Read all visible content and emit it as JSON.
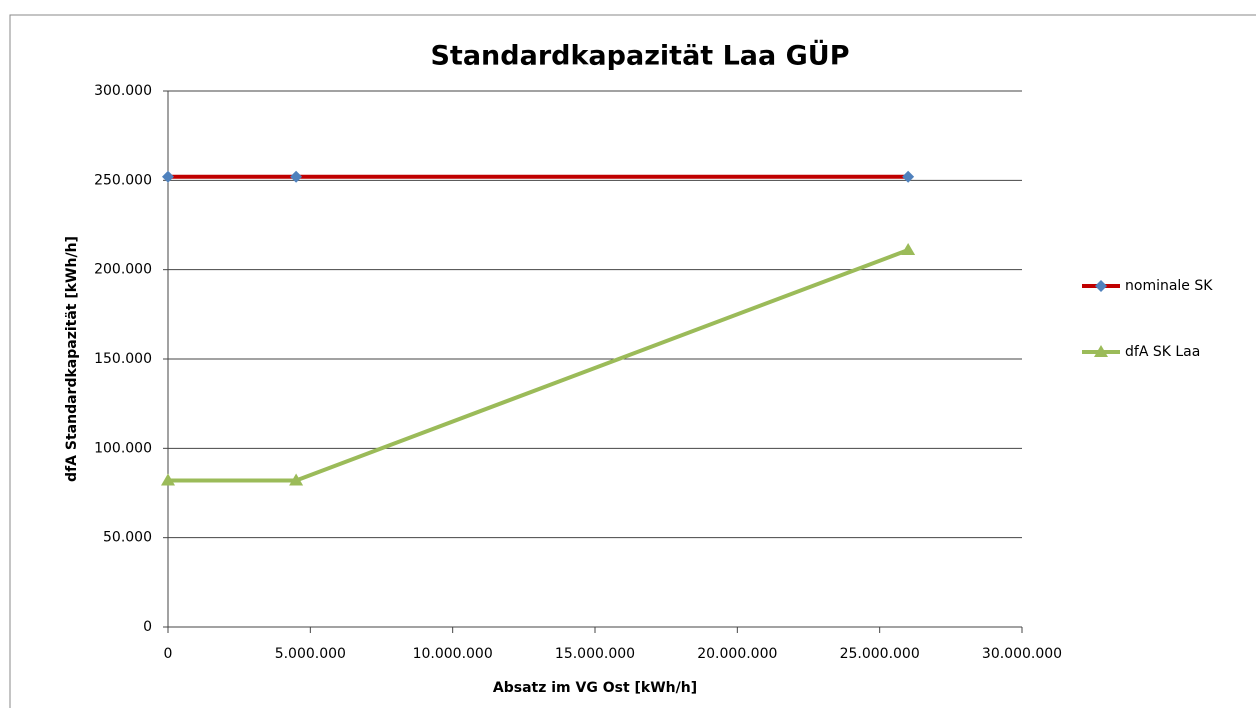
{
  "chart_data": {
    "type": "line",
    "title": "Standardkapazität Laa GÜP",
    "x_label": "Absatz im VG Ost [kWh/h]",
    "y_label": "dfA Standardkapazität  [kWh/h]",
    "x": [
      0,
      4500000,
      26000000
    ],
    "series": [
      {
        "name": "nominale SK",
        "color": "#c00000",
        "marker_color": "#4f81bd",
        "marker": "diamond",
        "values": [
          252000,
          252000,
          252000
        ]
      },
      {
        "name": "dfA SK Laa",
        "color": "#9bbb59",
        "marker_color": "#9bbb59",
        "marker": "triangle",
        "values": [
          82000,
          82000,
          211000
        ]
      }
    ],
    "xlim": [
      0,
      30000000
    ],
    "xticks": [
      0,
      {
        "value": 5000000,
        "label": "5.000.000"
      },
      {
        "value": 10000000,
        "label": "10.000.000"
      },
      {
        "value": 15000000,
        "label": "15.000.000"
      },
      {
        "value": 20000000,
        "label": "20.000.000"
      },
      {
        "value": 25000000,
        "label": "25.000.000"
      },
      {
        "value": 30000000,
        "label": "30.000.000"
      }
    ],
    "ylim": [
      0,
      300000
    ],
    "yticks": [
      0,
      {
        "value": 50000,
        "label": "50.000"
      },
      {
        "value": 100000,
        "label": "100.000"
      },
      {
        "value": 150000,
        "label": "150.000"
      },
      {
        "value": 200000,
        "label": "200.000"
      },
      {
        "value": 250000,
        "label": "250.000"
      },
      {
        "value": 300000,
        "label": "300.000"
      }
    ],
    "grid": true,
    "legend": "right"
  }
}
